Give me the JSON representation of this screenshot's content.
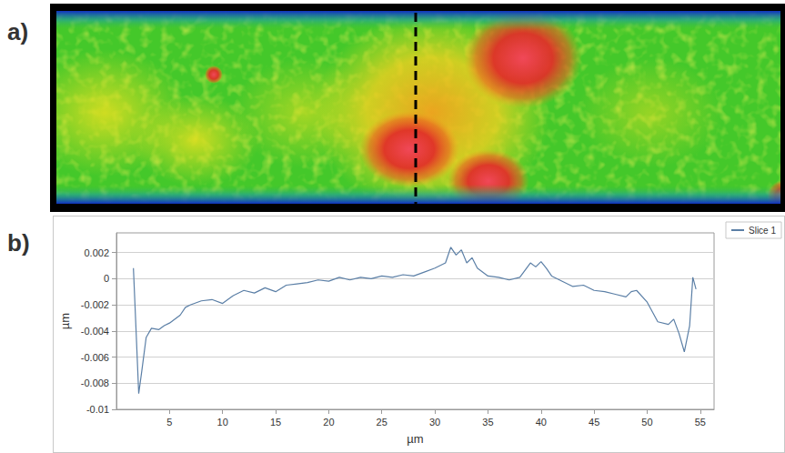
{
  "image": {
    "panel_label": "a)"
  },
  "chart_data": {
    "type": "line",
    "panel_label": "b)",
    "x_label": "µm",
    "y_label": "µm",
    "xlim": [
      0,
      56.3
    ],
    "ylim": [
      -0.01,
      0.0035
    ],
    "xticks": [
      5,
      10,
      15,
      20,
      25,
      30,
      35,
      40,
      45,
      50,
      55
    ],
    "yticks": [
      0.002,
      0,
      -0.002,
      -0.004,
      -0.006,
      -0.008,
      -0.01
    ],
    "grid": "y",
    "legend": "top-right",
    "x": [
      1.6,
      1.8,
      2.1,
      2.4,
      2.8,
      3.3,
      4,
      4.5,
      5,
      6,
      6.5,
      7,
      8,
      9,
      10,
      11,
      12,
      13,
      14,
      15,
      16,
      17,
      18,
      19,
      20,
      21,
      22,
      23,
      24,
      25,
      26,
      27,
      28,
      29,
      30,
      31,
      31.5,
      32,
      32.5,
      33,
      33.5,
      34,
      35,
      36,
      37,
      38,
      39,
      39.5,
      40,
      40.5,
      41,
      42,
      43,
      44,
      45,
      46,
      47,
      48,
      48.5,
      49,
      50,
      51,
      52,
      52.5,
      53,
      53.5,
      54,
      54.3,
      54.6
    ],
    "series": [
      {
        "name": "Slice 1",
        "color": "#5b7fa6",
        "values": [
          0.0008,
          -0.003,
          -0.0088,
          -0.007,
          -0.0045,
          -0.0038,
          -0.0039,
          -0.0036,
          -0.0034,
          -0.0028,
          -0.0022,
          -0.002,
          -0.0017,
          -0.0016,
          -0.0019,
          -0.0013,
          -0.0009,
          -0.0011,
          -0.0007,
          -0.001,
          -0.0005,
          -0.0004,
          -0.0003,
          -0.0001,
          -0.0002,
          0.0001,
          -0.0001,
          0.0001,
          0.0,
          0.0002,
          0.0001,
          0.0003,
          0.0002,
          0.0005,
          0.0008,
          0.0012,
          0.0024,
          0.0018,
          0.0022,
          0.0012,
          0.0016,
          0.0008,
          0.0002,
          0.0001,
          -0.0001,
          0.0001,
          0.0012,
          0.0009,
          0.0013,
          0.0008,
          0.0002,
          -0.0002,
          -0.0006,
          -0.0005,
          -0.0009,
          -0.001,
          -0.0012,
          -0.0014,
          -0.001,
          -0.0009,
          -0.0018,
          -0.0033,
          -0.0035,
          -0.0031,
          -0.0042,
          -0.0056,
          -0.0036,
          0.0001,
          -0.0008
        ]
      }
    ]
  }
}
